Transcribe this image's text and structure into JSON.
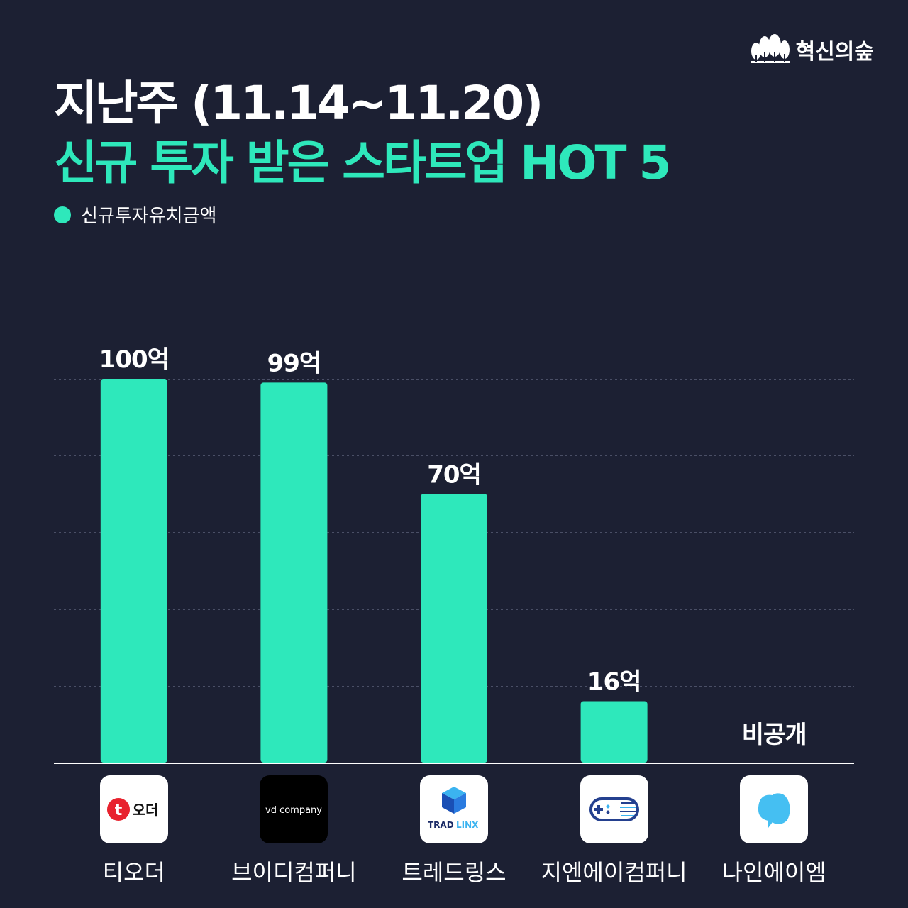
{
  "brand": {
    "name": "혁신의숲",
    "icon": "forest-trees-icon"
  },
  "header": {
    "title_line1": "지난주 (11.14~11.20)",
    "title_line2": "신규 투자 받은 스타트업 HOT 5"
  },
  "colors": {
    "accent": "#2ee8bb",
    "background": "#1c2033",
    "text": "#ffffff"
  },
  "chart_data": {
    "type": "bar",
    "categories": [
      "티오더",
      "브이디컴퍼니",
      "트레드링스",
      "지엔에이컴퍼니",
      "나인에이엠"
    ],
    "series": [
      {
        "name": "신규투자유치금액",
        "values": [
          100,
          99,
          70,
          16,
          null
        ]
      }
    ],
    "value_labels": [
      "100억",
      "99억",
      "70억",
      "16억",
      "비공개"
    ],
    "ylim": [
      0,
      100
    ],
    "grid": true,
    "legend_position": "top-left",
    "logos": [
      {
        "icon": "t-order-logo-icon",
        "text": "오더",
        "mark": "t"
      },
      {
        "icon": "vd-company-logo-icon",
        "text": "vd company"
      },
      {
        "icon": "tradlinx-logo-icon",
        "text_a": "TRAD",
        "text_b": "LINX"
      },
      {
        "icon": "gna-company-logo-icon"
      },
      {
        "icon": "nine-am-logo-icon"
      }
    ]
  }
}
